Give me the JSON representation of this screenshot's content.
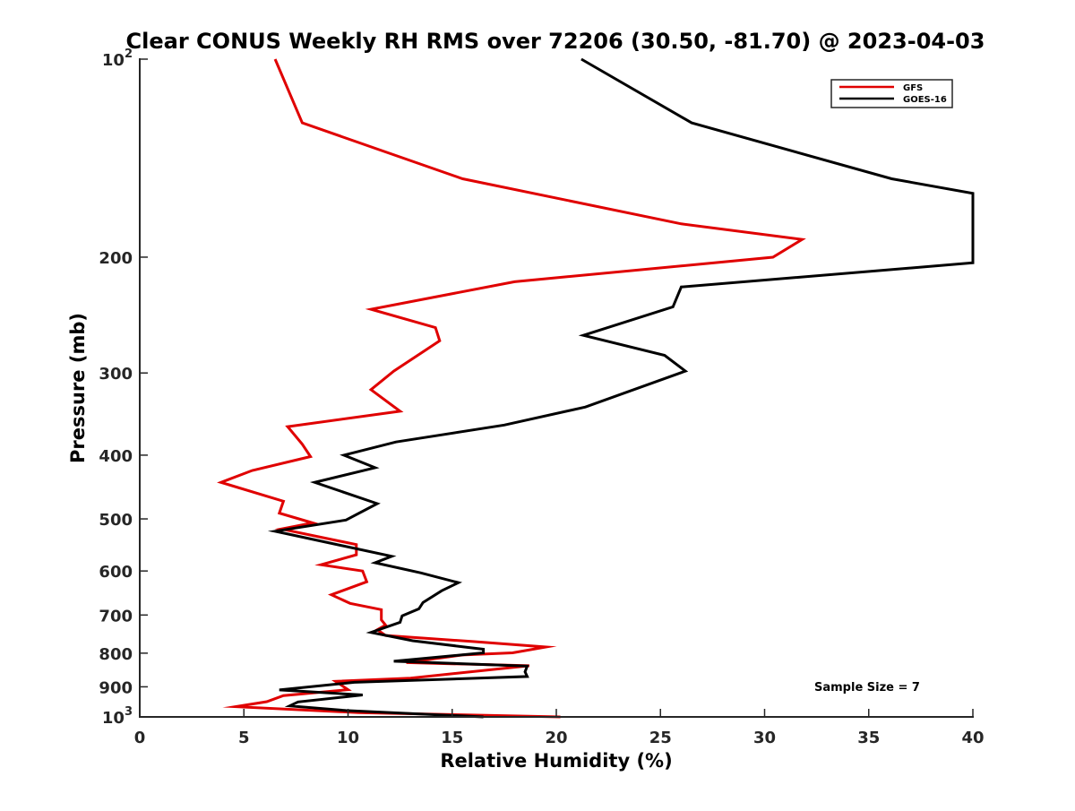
{
  "chart_data": {
    "type": "line",
    "title": "Clear CONUS Weekly RH RMS over 72206 (30.50, -81.70) @ 2023-04-03",
    "xlabel": "Relative Humidity (%)",
    "ylabel": "Pressure (mb)",
    "xlim": [
      0,
      40
    ],
    "ylim": [
      100,
      1000
    ],
    "yscale": "log",
    "y_reversed": true,
    "grid": false,
    "legend_placement": "top-right",
    "x_ticks": [
      {
        "value": 0,
        "label": "0"
      },
      {
        "value": 5,
        "label": "5"
      },
      {
        "value": 10,
        "label": "10"
      },
      {
        "value": 15,
        "label": "15"
      },
      {
        "value": 20,
        "label": "20"
      },
      {
        "value": 25,
        "label": "25"
      },
      {
        "value": 30,
        "label": "30"
      },
      {
        "value": 35,
        "label": "35"
      },
      {
        "value": 40,
        "label": "40"
      }
    ],
    "y_ticks": [
      {
        "value": 100,
        "label": "10",
        "sup": "2"
      },
      {
        "value": 200,
        "label": "200"
      },
      {
        "value": 300,
        "label": "300"
      },
      {
        "value": 400,
        "label": "400"
      },
      {
        "value": 500,
        "label": "500"
      },
      {
        "value": 600,
        "label": "600"
      },
      {
        "value": 700,
        "label": "700"
      },
      {
        "value": 800,
        "label": "800"
      },
      {
        "value": 900,
        "label": "900"
      },
      {
        "value": 1000,
        "label": "10",
        "sup": "3"
      }
    ],
    "annotation": "Sample Size = 7",
    "series": [
      {
        "name": "GFS",
        "color": "#e00000",
        "points": [
          [
            6.5,
            100
          ],
          [
            7.8,
            125
          ],
          [
            15.5,
            152
          ],
          [
            26,
            178
          ],
          [
            31.8,
            188
          ],
          [
            30.4,
            200
          ],
          [
            18,
            218
          ],
          [
            11.1,
            240
          ],
          [
            14.2,
            256
          ],
          [
            14.4,
            268
          ],
          [
            12.2,
            298
          ],
          [
            11.1,
            318
          ],
          [
            12.5,
            343
          ],
          [
            7.1,
            362
          ],
          [
            7.8,
            385
          ],
          [
            8.2,
            402
          ],
          [
            5.4,
            422
          ],
          [
            3.9,
            440
          ],
          [
            6.9,
            470
          ],
          [
            6.7,
            490
          ],
          [
            8.3,
            507
          ],
          [
            6.8,
            518
          ],
          [
            10.4,
            547
          ],
          [
            10.4,
            567
          ],
          [
            8.7,
            587
          ],
          [
            10.7,
            600
          ],
          [
            10.9,
            623
          ],
          [
            9.2,
            652
          ],
          [
            10.1,
            672
          ],
          [
            11.6,
            687
          ],
          [
            11.6,
            712
          ],
          [
            11.8,
            725
          ],
          [
            11.4,
            737
          ],
          [
            11.8,
            752
          ],
          [
            16.0,
            768
          ],
          [
            19.5,
            783
          ],
          [
            17.9,
            799
          ],
          [
            15.5,
            805
          ],
          [
            12.8,
            827
          ],
          [
            18.7,
            836
          ],
          [
            13.0,
            873
          ],
          [
            9.4,
            883
          ],
          [
            10.0,
            909
          ],
          [
            6.9,
            928
          ],
          [
            6.1,
            948
          ],
          [
            4.6,
            965
          ],
          [
            10.5,
            985
          ],
          [
            20.2,
            1000
          ]
        ]
      },
      {
        "name": "GOES-16",
        "color": "#000000",
        "points": [
          [
            21.2,
            100
          ],
          [
            26.5,
            125
          ],
          [
            36.1,
            152
          ],
          [
            40.0,
            160
          ],
          [
            40.0,
            204
          ],
          [
            26.0,
            222
          ],
          [
            25.6,
            238
          ],
          [
            21.3,
            263
          ],
          [
            25.2,
            282
          ],
          [
            26.2,
            298
          ],
          [
            21.4,
            338
          ],
          [
            17.5,
            360
          ],
          [
            12.3,
            382
          ],
          [
            9.8,
            400
          ],
          [
            11.3,
            418
          ],
          [
            8.4,
            440
          ],
          [
            11.4,
            474
          ],
          [
            9.9,
            502
          ],
          [
            6.5,
            522
          ],
          [
            12.1,
            570
          ],
          [
            11.3,
            583
          ],
          [
            13.5,
            604
          ],
          [
            15.3,
            625
          ],
          [
            14.5,
            643
          ],
          [
            13.6,
            670
          ],
          [
            13.4,
            685
          ],
          [
            12.6,
            702
          ],
          [
            12.5,
            718
          ],
          [
            11.1,
            744
          ],
          [
            13.1,
            766
          ],
          [
            16.5,
            789
          ],
          [
            16.5,
            799
          ],
          [
            12.2,
            823
          ],
          [
            18.6,
            837
          ],
          [
            18.5,
            854
          ],
          [
            18.6,
            868
          ],
          [
            10.3,
            886
          ],
          [
            6.7,
            910
          ],
          [
            10.7,
            926
          ],
          [
            7.6,
            949
          ],
          [
            7.2,
            962
          ],
          [
            9.9,
            978
          ],
          [
            16.5,
            1000
          ]
        ]
      }
    ]
  }
}
